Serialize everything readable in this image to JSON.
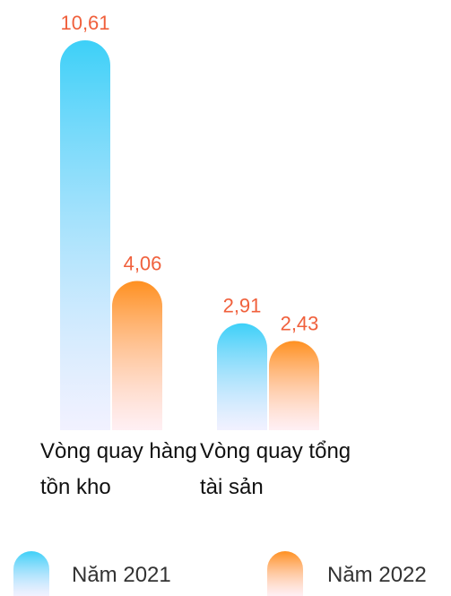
{
  "chart_data": {
    "type": "bar",
    "categories": [
      "Vòng quay hàng tồn kho",
      "Vòng quay tổng tài sản"
    ],
    "series": [
      {
        "name": "Năm 2021",
        "color": "#3dd0f8",
        "values": [
          10.61,
          2.91
        ],
        "value_labels": [
          "10,61",
          "2,91"
        ]
      },
      {
        "name": "Năm 2022",
        "color": "#ff9020",
        "values": [
          4.06,
          2.43
        ],
        "value_labels": [
          "4,06",
          "2,43"
        ]
      }
    ],
    "ylim": [
      0,
      11
    ]
  }
}
